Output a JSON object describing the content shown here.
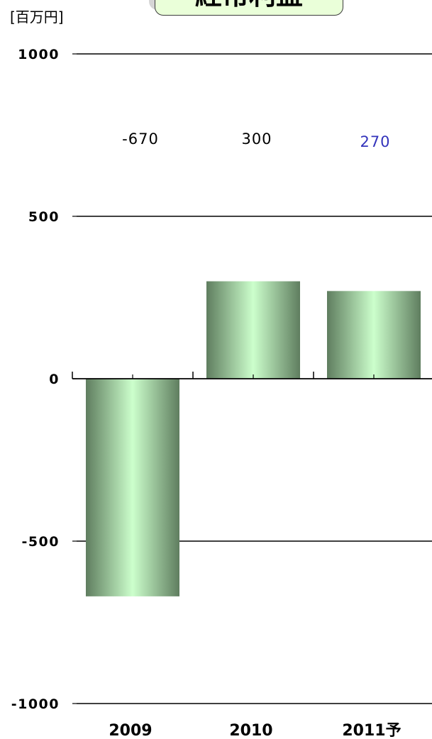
{
  "unit_label": "[百万円]",
  "title_fragment": "経常利益",
  "colors": {
    "bar_edge": "#5f7d5f",
    "bar_center": "#ccffcc",
    "axis": "#000000",
    "label_default": "#000000",
    "label_forecast": "#3333bb"
  },
  "chart_data": {
    "type": "bar",
    "categories": [
      "2009",
      "2010",
      "2011予"
    ],
    "values": [
      -670,
      300,
      270
    ],
    "data_labels": [
      "-670",
      "300",
      "270"
    ],
    "ylim": [
      -1000,
      1000
    ],
    "yticks": [
      1000,
      500,
      0,
      -500,
      -1000
    ],
    "ytick_labels": [
      "1000",
      "500",
      "0",
      "-500",
      "-1000"
    ],
    "grid": true,
    "xlabel": "",
    "ylabel": ""
  }
}
